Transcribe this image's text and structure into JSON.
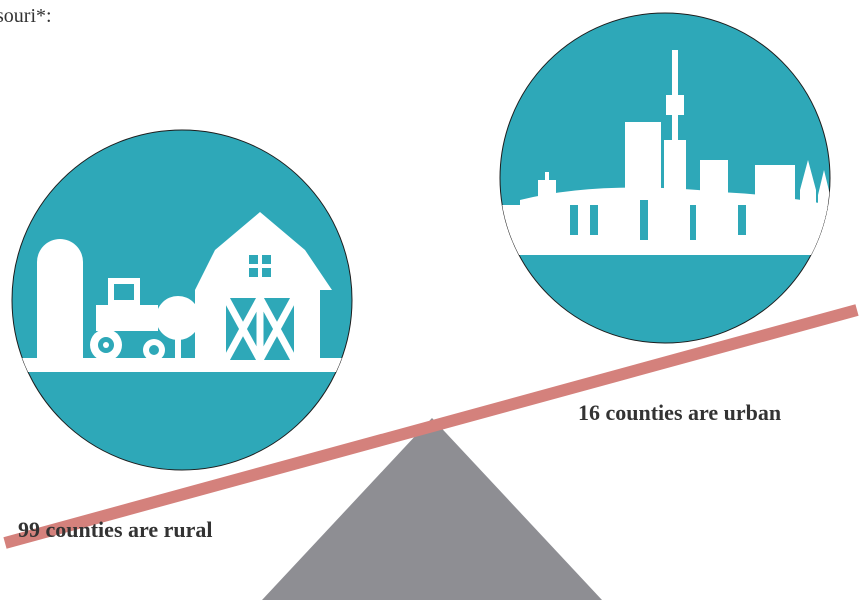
{
  "header": {
    "text": "souri*:"
  },
  "labels": {
    "urban": "16 counties are urban",
    "rural": "99 counties are rural"
  }
}
